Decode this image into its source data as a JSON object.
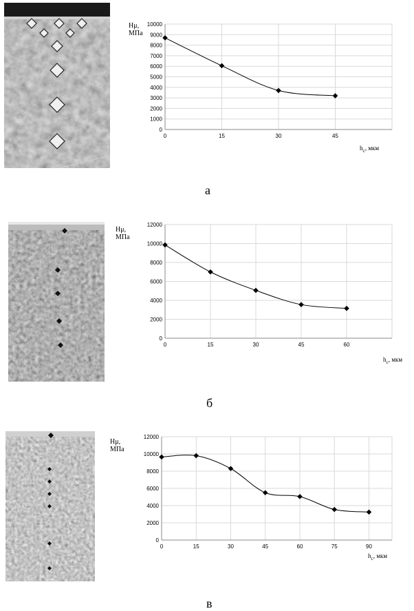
{
  "panels": [
    {
      "letter": "а"
    },
    {
      "letter": "б"
    },
    {
      "letter": "в"
    }
  ],
  "chart_data": [
    {
      "type": "line",
      "x": [
        0,
        15,
        30,
        45
      ],
      "y": [
        8700,
        6050,
        3700,
        3200
      ],
      "xticks": [
        0,
        15,
        30,
        45
      ],
      "yticks": [
        0,
        1000,
        2000,
        3000,
        4000,
        5000,
        6000,
        7000,
        8000,
        9000,
        10000
      ],
      "xlim": [
        0,
        60
      ],
      "ylim": [
        0,
        10000
      ],
      "ylabel": [
        "Hμ,",
        "МПа"
      ],
      "xlabel": "h",
      "xlabel_sub": "c",
      "xlabel_unit": ", мкм",
      "grid": true,
      "marker": "diamond",
      "color": "#000000"
    },
    {
      "type": "line",
      "x": [
        0,
        15,
        30,
        45,
        60
      ],
      "y": [
        9850,
        7000,
        5050,
        3550,
        3150
      ],
      "xticks": [
        0,
        15,
        30,
        45,
        60
      ],
      "yticks": [
        0,
        2000,
        4000,
        6000,
        8000,
        10000,
        12000
      ],
      "xlim": [
        0,
        75
      ],
      "ylim": [
        0,
        12000
      ],
      "ylabel": [
        "Hμ,",
        "МПа"
      ],
      "xlabel": "h",
      "xlabel_sub": "c",
      "xlabel_unit": ", мкм",
      "grid": true,
      "marker": "diamond",
      "color": "#000000"
    },
    {
      "type": "line",
      "x": [
        0,
        15,
        30,
        45,
        60,
        75,
        90
      ],
      "y": [
        9650,
        9800,
        8300,
        5500,
        5050,
        3550,
        3250
      ],
      "xticks": [
        0,
        15,
        30,
        45,
        60,
        75,
        90
      ],
      "yticks": [
        0,
        2000,
        4000,
        6000,
        8000,
        10000,
        12000
      ],
      "xlim": [
        0,
        100
      ],
      "ylim": [
        0,
        12000
      ],
      "ylabel": [
        "Hμ,",
        "МПа"
      ],
      "xlabel": "h",
      "xlabel_sub": "c",
      "xlabel_unit": ", мкм",
      "grid": true,
      "marker": "diamond",
      "color": "#000000"
    }
  ]
}
